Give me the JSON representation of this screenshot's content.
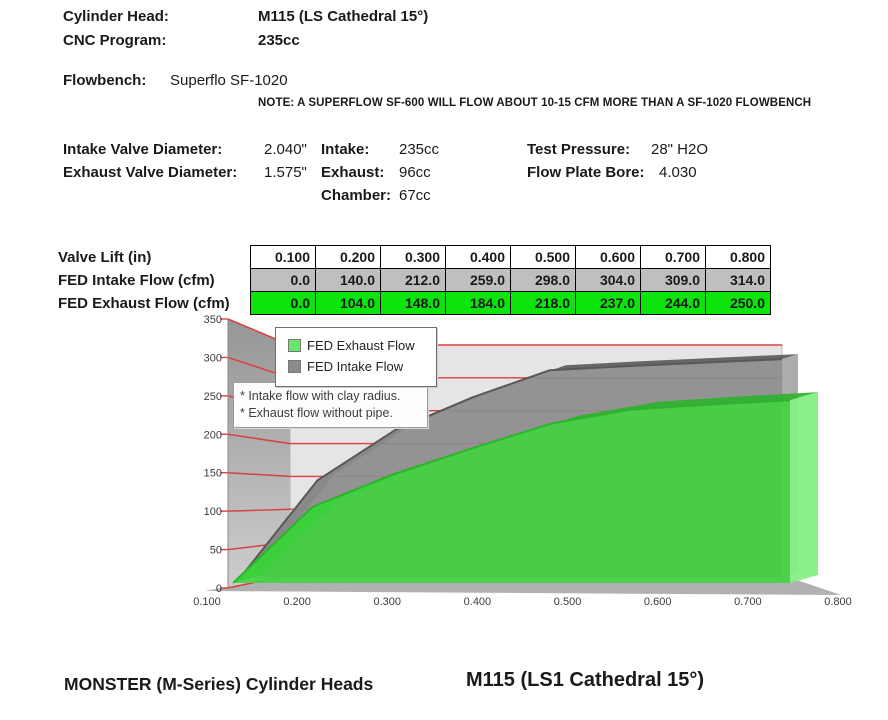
{
  "header": {
    "cylinder_head_label": "Cylinder Head:",
    "cylinder_head_value": "M115 (LS Cathedral 15°)",
    "cnc_program_label": "CNC Program:",
    "cnc_program_value": "235cc",
    "flowbench_label": "Flowbench:",
    "flowbench_value": "Superflo SF-1020",
    "note": "NOTE: A SUPERFLOW SF-600 WILL FLOW ABOUT 10-15 CFM MORE THAN A SF-1020 FLOWBENCH"
  },
  "specs": {
    "intake_valve_diameter_label": "Intake Valve Diameter:",
    "intake_valve_diameter_value": "2.040\"",
    "exhaust_valve_diameter_label": "Exhaust Valve Diameter:",
    "exhaust_valve_diameter_value": "1.575\"",
    "intake_label": "Intake:",
    "intake_value": "235cc",
    "exhaust_label": "Exhaust:",
    "exhaust_value": "96cc",
    "chamber_label": "Chamber:",
    "chamber_value": "67cc",
    "test_pressure_label": "Test Pressure:",
    "test_pressure_value": "28\" H2O",
    "flow_plate_bore_label": "Flow Plate Bore:",
    "flow_plate_bore_value": "4.030"
  },
  "flow_table": {
    "row_labels": [
      "Valve Lift (in)",
      "FED Intake Flow (cfm)",
      "FED Exhaust Flow (cfm)"
    ],
    "lift": [
      "0.100",
      "0.200",
      "0.300",
      "0.400",
      "0.500",
      "0.600",
      "0.700",
      "0.800"
    ],
    "intake": [
      "0.0",
      "140.0",
      "212.0",
      "259.0",
      "298.0",
      "304.0",
      "309.0",
      "314.0"
    ],
    "exhaust": [
      "0.0",
      "104.0",
      "148.0",
      "184.0",
      "218.0",
      "237.0",
      "244.0",
      "250.0"
    ],
    "intake_row_color": "#bfbfbf",
    "exhaust_row_color": "#0de30d"
  },
  "chart_data": {
    "type": "area",
    "style": "3d-area",
    "x_tick_labels": [
      "0.100",
      "0.200",
      "0.300",
      "0.400",
      "0.500",
      "0.600",
      "0.700",
      "0.800"
    ],
    "x": [
      0.1,
      0.2,
      0.3,
      0.4,
      0.5,
      0.6,
      0.7,
      0.8
    ],
    "series": [
      {
        "name": "FED Exhaust Flow",
        "values": [
          0,
          104,
          148,
          184,
          218,
          237,
          244,
          250
        ],
        "color": "#3fd53f",
        "side_color": "#85ef85",
        "edge_color": "#2db32d"
      },
      {
        "name": "FED Intake Flow",
        "values": [
          0,
          140,
          212,
          259,
          298,
          304,
          309,
          314
        ],
        "color": "#8c8c8c",
        "side_color": "#a8a8a8",
        "edge_color": "#595959"
      }
    ],
    "ylim": [
      0,
      350
    ],
    "y_ticks": [
      0,
      50,
      100,
      150,
      200,
      250,
      300,
      350
    ],
    "gridline_color": "#d94040",
    "grid": true,
    "legend_position": "top-left-inside",
    "annotations": [
      "* Intake flow with clay radius.",
      "* Exhaust flow without pipe."
    ],
    "wall_color": "#e6e4e4",
    "floor_color": "#b2b0b0"
  },
  "footer": {
    "left_title": "MONSTER (M-Series) Cylinder Heads",
    "right_title": "M115 (LS1 Cathedral 15°)"
  }
}
